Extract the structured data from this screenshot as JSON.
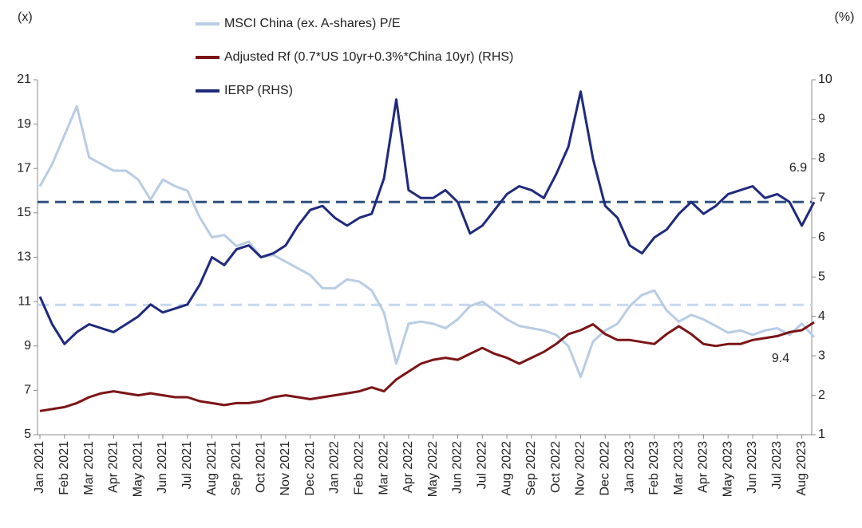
{
  "chart_data": {
    "type": "line",
    "y_unit_label": "(x)",
    "y2_unit_label": "(%)",
    "x": [
      "Jan 2021",
      null,
      "Feb 2021",
      null,
      "Mar 2021",
      null,
      "Apr 2021",
      null,
      "May 2021",
      null,
      "Jun 2021",
      null,
      "Jul 2021",
      null,
      "Aug 2021",
      null,
      "Sep 2021",
      null,
      "Oct 2021",
      null,
      "Nov 2021",
      null,
      "Dec 2021",
      null,
      "Jan 2022",
      null,
      "Feb 2022",
      null,
      "Mar 2022",
      null,
      "Apr 2022",
      null,
      "May 2022",
      null,
      "Jun 2022",
      null,
      "Jul 2022",
      null,
      "Aug 2022",
      null,
      "Sep 2022",
      null,
      "Oct 2022",
      null,
      "Nov 2022",
      null,
      "Dec 2022",
      null,
      "Jan 2023",
      null,
      "Feb 2023",
      null,
      "Mar 2023",
      null,
      "Apr 2023",
      null,
      "May 2023",
      null,
      "Jun 2023",
      null,
      "Jul 2023",
      null,
      "Aug 2023",
      null
    ],
    "series": [
      {
        "name": "MSCI China (ex. A-shares) P/E",
        "color": "#b8cce4",
        "axis": "y",
        "values": [
          16.2,
          17.2,
          18.5,
          19.8,
          17.5,
          17.2,
          16.9,
          16.9,
          16.5,
          15.6,
          16.5,
          16.2,
          16.0,
          14.8,
          13.9,
          14.0,
          13.5,
          13.7,
          13.0,
          13.1,
          12.8,
          12.5,
          12.2,
          11.6,
          11.6,
          12.0,
          11.9,
          11.5,
          10.5,
          8.2,
          10.0,
          10.1,
          10.0,
          9.8,
          10.2,
          10.8,
          11.0,
          10.6,
          10.2,
          9.9,
          9.8,
          9.7,
          9.5,
          9.0,
          7.6,
          9.2,
          9.7,
          10.0,
          10.8,
          11.3,
          11.5,
          10.6,
          10.1,
          10.4,
          10.2,
          9.9,
          9.6,
          9.7,
          9.5,
          9.7,
          9.8,
          9.5,
          10.0,
          9.4
        ]
      },
      {
        "name": "Adjusted Rf (0.7*US 10yr+0.3%*China 10yr) (RHS)",
        "color": "#7b1416",
        "axis": "y2",
        "values": [
          1.6,
          1.65,
          1.7,
          1.8,
          1.95,
          2.05,
          2.1,
          2.05,
          2.0,
          2.05,
          2.0,
          1.95,
          1.95,
          1.85,
          1.8,
          1.75,
          1.8,
          1.8,
          1.85,
          1.95,
          2.0,
          1.95,
          1.9,
          1.95,
          2.0,
          2.05,
          2.1,
          2.2,
          2.1,
          2.4,
          2.6,
          2.8,
          2.9,
          2.95,
          2.9,
          3.05,
          3.2,
          3.05,
          2.95,
          2.8,
          2.95,
          3.1,
          3.3,
          3.55,
          3.65,
          3.8,
          3.55,
          3.4,
          3.4,
          3.35,
          3.3,
          3.55,
          3.75,
          3.55,
          3.3,
          3.25,
          3.3,
          3.3,
          3.4,
          3.45,
          3.5,
          3.6,
          3.65,
          3.85
        ]
      },
      {
        "name": "IERP (RHS)",
        "color": "#1f2a7c",
        "axis": "y2",
        "values": [
          4.5,
          3.8,
          3.3,
          3.6,
          3.8,
          3.7,
          3.6,
          3.8,
          4.0,
          4.3,
          4.1,
          4.2,
          4.3,
          4.8,
          5.5,
          5.3,
          5.7,
          5.8,
          5.5,
          5.6,
          5.8,
          6.3,
          6.7,
          6.8,
          6.5,
          6.3,
          6.5,
          6.6,
          7.5,
          9.5,
          7.2,
          7.0,
          7.0,
          7.2,
          6.9,
          6.1,
          6.3,
          6.7,
          7.1,
          7.3,
          7.2,
          7.0,
          7.6,
          8.3,
          9.7,
          8.0,
          6.8,
          6.5,
          5.8,
          5.6,
          6.0,
          6.2,
          6.6,
          6.9,
          6.6,
          6.8,
          7.1,
          7.2,
          7.3,
          7.0,
          7.1,
          6.9,
          6.3,
          6.9
        ]
      }
    ],
    "reference_lines": [
      {
        "value": 10.85,
        "axis": "y",
        "color": "#c6d9f1"
      },
      {
        "value": 6.9,
        "axis": "y2",
        "color": "#2f4f7f"
      }
    ],
    "annotations": [
      "6.9",
      "9.4"
    ],
    "ylim": [
      5,
      21
    ],
    "yticks": [
      5,
      7,
      9,
      11,
      13,
      15,
      17,
      19,
      21
    ],
    "y2lim": [
      1,
      10
    ],
    "y2ticks": [
      1,
      2,
      3,
      4,
      5,
      6,
      7,
      8,
      9,
      10
    ],
    "grid": false
  }
}
